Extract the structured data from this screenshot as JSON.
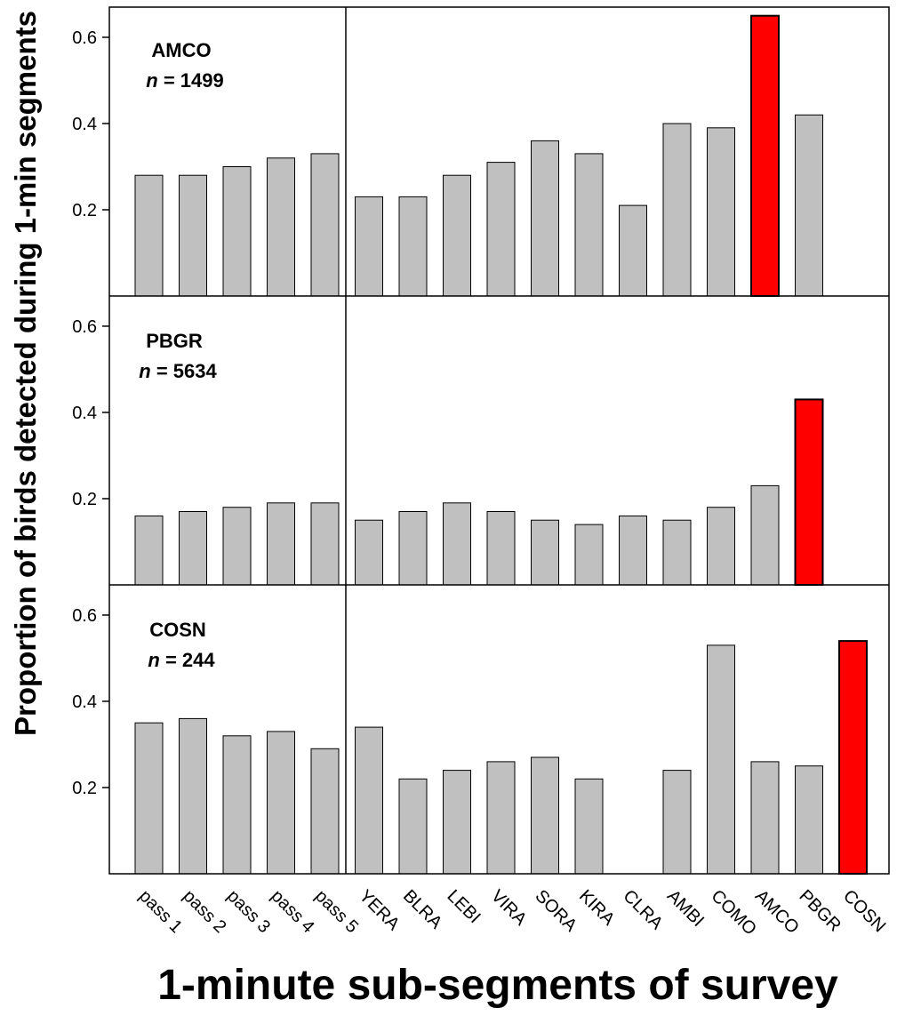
{
  "chart_data": {
    "type": "bar",
    "xlabel": "1-minute sub-segments of survey",
    "ylabel": "Proportion of birds detected during 1-min segments",
    "ylim": [
      0,
      0.67
    ],
    "yticks": [
      "0.2",
      "0.4",
      "0.6"
    ],
    "grid": false,
    "categories": [
      "pass 1",
      "pass 2",
      "pass 3",
      "pass 4",
      "pass 5",
      "YERA",
      "BLRA",
      "LEBI",
      "VIRA",
      "SORA",
      "KIRA",
      "CLRA",
      "AMBI",
      "COMO",
      "AMCO",
      "PBGR",
      "COSN"
    ],
    "normal_color": "#c0c0c0",
    "highlight_color": "#ff0000",
    "panels": [
      {
        "title": "AMCO",
        "n_label": "n",
        "n_value": " = 1499",
        "highlight": "AMCO",
        "values": [
          0.28,
          0.28,
          0.3,
          0.32,
          0.33,
          0.23,
          0.23,
          0.28,
          0.31,
          0.36,
          0.33,
          0.21,
          0.4,
          0.39,
          0.65,
          0.42,
          null
        ]
      },
      {
        "title": "PBGR",
        "n_label": "n",
        "n_value": " = 5634",
        "highlight": "PBGR",
        "values": [
          0.16,
          0.17,
          0.18,
          0.19,
          0.19,
          0.15,
          0.17,
          0.19,
          0.17,
          0.15,
          0.14,
          0.16,
          0.15,
          0.18,
          0.23,
          0.43,
          null
        ]
      },
      {
        "title": "COSN",
        "n_label": "n",
        "n_value": " = 244",
        "highlight": "COSN",
        "values": [
          0.35,
          0.36,
          0.32,
          0.33,
          0.29,
          0.34,
          0.22,
          0.24,
          0.26,
          0.27,
          0.22,
          0.0,
          0.24,
          0.53,
          0.26,
          0.25,
          0.54
        ]
      }
    ]
  }
}
